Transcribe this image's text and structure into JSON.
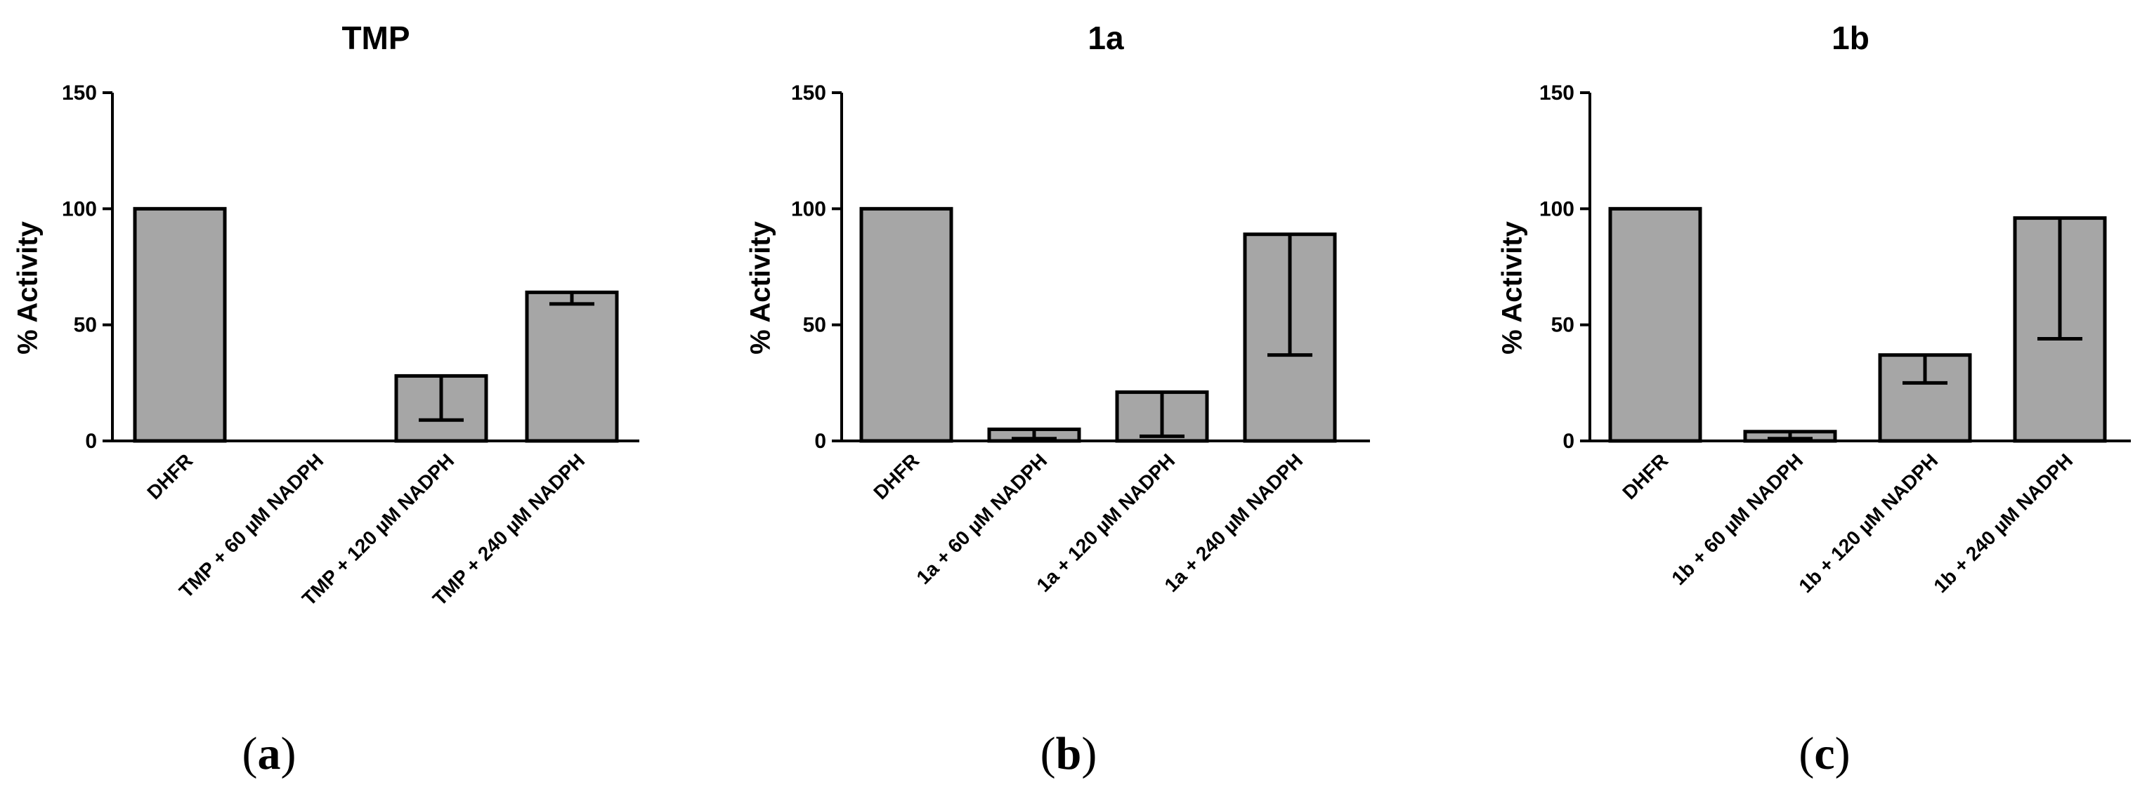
{
  "chart_data": [
    {
      "type": "bar",
      "title": "TMP",
      "ylabel": "% Activity",
      "xlabel": "",
      "ylim": [
        0,
        150
      ],
      "yticks": [
        "0",
        "50",
        "100",
        "150"
      ],
      "categories": [
        "DHFR",
        "TMP + 60 µM NADPH",
        "TMP + 120 µM NADPH",
        "TMP + 240 µM NADPH"
      ],
      "values": [
        100,
        0,
        28,
        64
      ],
      "error_low": [
        100,
        0,
        9,
        59
      ],
      "panel_label": "(a)",
      "grid": false,
      "bar_color": "#a6a6a6"
    },
    {
      "type": "bar",
      "title": "1a",
      "ylabel": "% Activity",
      "xlabel": "",
      "ylim": [
        0,
        150
      ],
      "yticks": [
        "0",
        "50",
        "100",
        "150"
      ],
      "categories": [
        "DHFR",
        "1a + 60 µM NADPH",
        "1a + 120 µM NADPH",
        "1a + 240 µM NADPH"
      ],
      "values": [
        100,
        5,
        21,
        89
      ],
      "error_low": [
        100,
        1,
        2,
        37
      ],
      "panel_label": "(b)",
      "grid": false,
      "bar_color": "#a6a6a6"
    },
    {
      "type": "bar",
      "title": "1b",
      "ylabel": "% Activity",
      "xlabel": "",
      "ylim": [
        0,
        150
      ],
      "yticks": [
        "0",
        "50",
        "100",
        "150"
      ],
      "categories": [
        "DHFR",
        "1b + 60 µM NADPH",
        "1b + 120 µM NADPH",
        "1b + 240 µM NADPH"
      ],
      "values": [
        100,
        4,
        37,
        96
      ],
      "error_low": [
        100,
        1,
        25,
        44
      ],
      "panel_label": "(c)",
      "grid": false,
      "bar_color": "#a6a6a6"
    }
  ]
}
